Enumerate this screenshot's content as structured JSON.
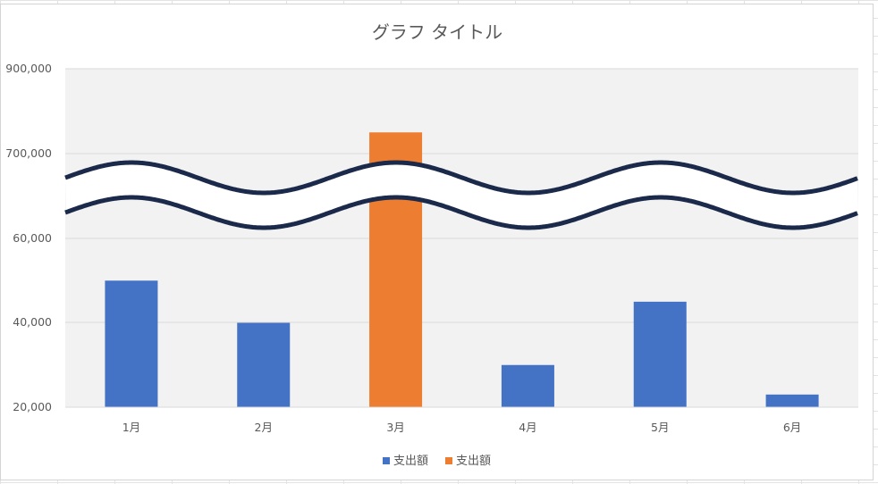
{
  "chart_data": {
    "type": "bar",
    "title": "グラフ タイトル",
    "categories": [
      "1月",
      "2月",
      "3月",
      "4月",
      "5月",
      "6月"
    ],
    "series": [
      {
        "name": "支出額",
        "color": "#4472C4",
        "values": [
          50000,
          40000,
          null,
          30000,
          45000,
          23000
        ]
      },
      {
        "name": "支出額",
        "color": "#ED7D31",
        "values": [
          null,
          null,
          750000,
          null,
          null,
          null
        ]
      }
    ],
    "y_tick_labels": [
      "900,000",
      "700,000",
      "60,000",
      "40,000",
      "20,000"
    ],
    "y_axis_break": {
      "lower_range": [
        20000,
        60000
      ],
      "upper_range": [
        700000,
        900000
      ]
    },
    "grid": true,
    "legend_position": "bottom",
    "colors": {
      "plot_background": "#F2F2F2",
      "break_line": "#1B2A4A"
    }
  }
}
